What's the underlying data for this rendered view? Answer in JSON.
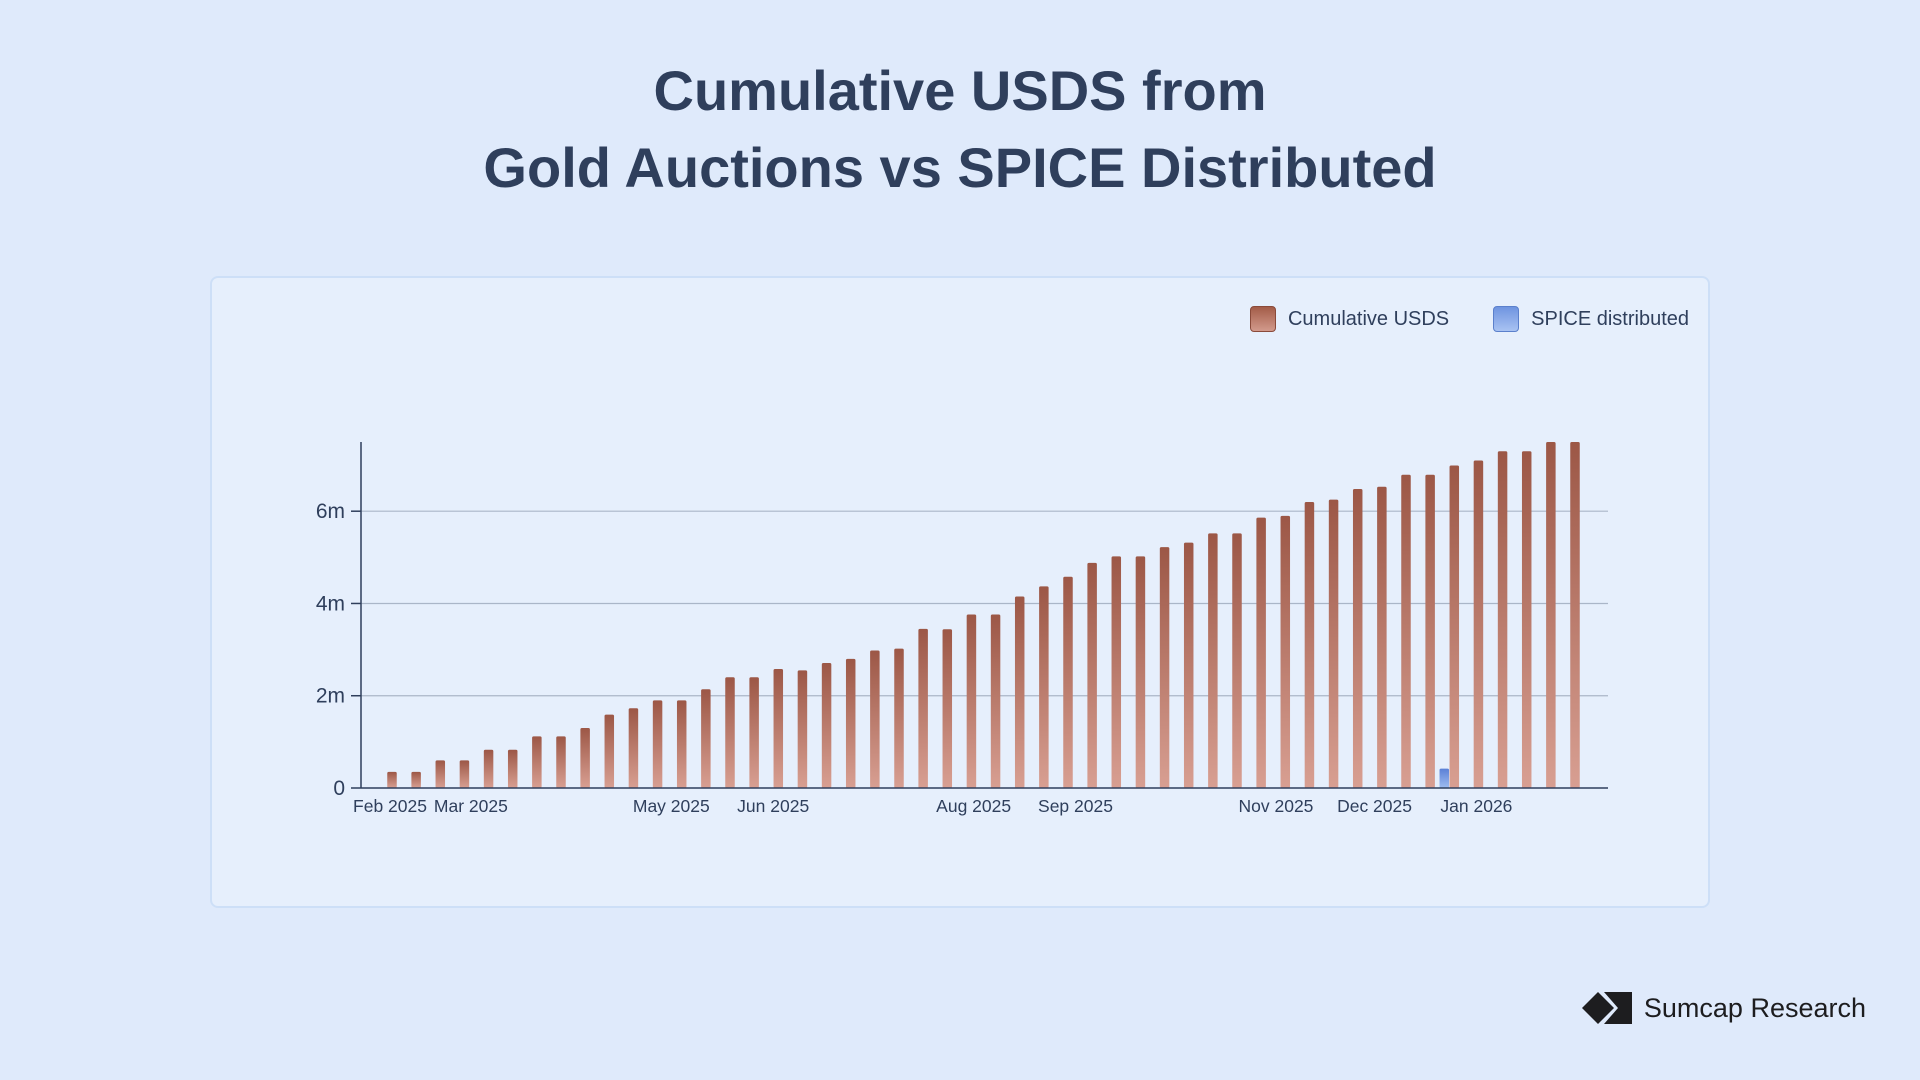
{
  "title_line1": "Cumulative USDS from",
  "title_line2": "Gold Auctions vs SPICE Distributed",
  "brand": "Sumcap Research",
  "colors": {
    "background": "#dfeafb",
    "usds_top": "#9c5746",
    "usds_bottom": "#d89f92",
    "spice_top": "#5b80d6",
    "spice_bottom": "#9fbdf0",
    "axis": "#2f3f5c",
    "grid": "#aab6c8"
  },
  "chart_data": {
    "type": "bar",
    "title": "Cumulative USDS from Gold Auctions vs SPICE Distributed",
    "xlabel": "",
    "ylabel": "",
    "ylim": [
      0,
      7500000
    ],
    "yticks": [
      0,
      2000000,
      4000000,
      6000000
    ],
    "ytick_labels": [
      "0",
      "2m",
      "4m",
      "6m"
    ],
    "grid": true,
    "legend_position": "top-right",
    "legend": [
      "Cumulative USDS",
      "SPICE distributed"
    ],
    "x_start": "2025-02-05",
    "x_end": "2026-01-31",
    "x_tick_labels": [
      {
        "label": "Feb 2025",
        "date": "2025-02-01"
      },
      {
        "label": "Mar 2025",
        "date": "2025-03-01"
      },
      {
        "label": "May 2025",
        "date": "2025-05-01"
      },
      {
        "label": "Jun 2025",
        "date": "2025-06-01"
      },
      {
        "label": "Aug 2025",
        "date": "2025-08-01"
      },
      {
        "label": "Sep 2025",
        "date": "2025-09-01"
      },
      {
        "label": "Nov 2025",
        "date": "2025-11-01"
      },
      {
        "label": "Dec 2025",
        "date": "2025-12-01"
      },
      {
        "label": "Jan 2026",
        "date": "2026-01-01"
      }
    ],
    "series": [
      {
        "name": "Cumulative USDS",
        "values": [
          350000,
          350000,
          600000,
          600000,
          830000,
          830000,
          1120000,
          1120000,
          1300000,
          1590000,
          1730000,
          1900000,
          1900000,
          2140000,
          2400000,
          2400000,
          2580000,
          2550000,
          2710000,
          2800000,
          2980000,
          3020000,
          3450000,
          3440000,
          3760000,
          3760000,
          4150000,
          4370000,
          4580000,
          4880000,
          5020000,
          5020000,
          5220000,
          5320000,
          5520000,
          5520000,
          5860000,
          5900000,
          6200000,
          6250000,
          6480000,
          6530000,
          6790000,
          6790000,
          6990000,
          7100000,
          7300000,
          7300000,
          7500000,
          7500000
        ]
      },
      {
        "name": "SPICE distributed",
        "points": [
          {
            "index": 44,
            "value": 420000
          }
        ]
      }
    ]
  }
}
